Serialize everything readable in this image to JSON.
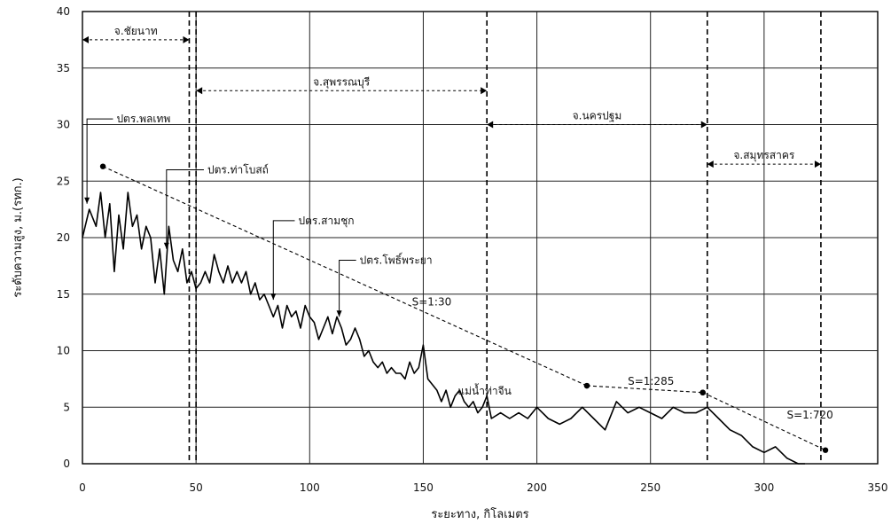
{
  "chart_data": {
    "type": "line",
    "title": "",
    "xlabel": "ระยะทาง, กิโลเมตร",
    "ylabel": "ระดับความสูง, ม.(รทก.)",
    "xlim": [
      0,
      350
    ],
    "ylim": [
      0,
      40
    ],
    "x_ticks": [
      0,
      50,
      100,
      150,
      200,
      250,
      300,
      350
    ],
    "y_ticks": [
      0,
      5,
      10,
      15,
      20,
      25,
      30,
      35,
      40
    ],
    "grid": true,
    "boundary_lines_km": [
      47,
      50,
      178,
      275,
      325
    ],
    "series": [
      {
        "name": "แม่น้ำท่าจีน",
        "x": [
          0,
          3,
          6,
          8,
          10,
          12,
          14,
          16,
          18,
          20,
          22,
          24,
          26,
          28,
          30,
          32,
          34,
          36,
          38,
          40,
          42,
          44,
          46,
          48,
          50,
          52,
          54,
          56,
          58,
          60,
          62,
          64,
          66,
          68,
          70,
          72,
          74,
          76,
          78,
          80,
          82,
          84,
          86,
          88,
          90,
          92,
          94,
          96,
          98,
          100,
          102,
          104,
          106,
          108,
          110,
          112,
          114,
          116,
          118,
          120,
          122,
          124,
          126,
          128,
          130,
          132,
          134,
          136,
          138,
          140,
          142,
          144,
          146,
          148,
          150,
          152,
          154,
          156,
          158,
          160,
          162,
          164,
          166,
          168,
          170,
          172,
          174,
          176,
          178,
          180,
          184,
          188,
          192,
          196,
          200,
          205,
          210,
          215,
          220,
          225,
          230,
          235,
          240,
          245,
          250,
          255,
          260,
          265,
          270,
          275,
          280,
          285,
          290,
          295,
          300,
          305,
          310,
          315,
          318
        ],
        "y": [
          20,
          22.5,
          21,
          24,
          20,
          23,
          17,
          22,
          19,
          24,
          21,
          22,
          19,
          21,
          20,
          16,
          19,
          15,
          21,
          18,
          17,
          19,
          16,
          17,
          15.5,
          16,
          17,
          16,
          18.5,
          17,
          16,
          17.5,
          16,
          17,
          16,
          17,
          15,
          16,
          14.5,
          15,
          14,
          13,
          14,
          12,
          14,
          13,
          13.5,
          12,
          14,
          13,
          12.5,
          11,
          12,
          13,
          11.5,
          13,
          12,
          10.5,
          11,
          12,
          11,
          9.5,
          10,
          9,
          8.5,
          9,
          8,
          8.5,
          8,
          8,
          7.5,
          9,
          8,
          8.5,
          10.5,
          7.5,
          7,
          6.5,
          5.5,
          6.5,
          5,
          6,
          6.5,
          5.5,
          5,
          5.5,
          4.5,
          5,
          6,
          4,
          4.5,
          4,
          4.5,
          4,
          5,
          4,
          3.5,
          4,
          5,
          4,
          3,
          5.5,
          4.5,
          5,
          4.5,
          4,
          5,
          4.5,
          4.5,
          5,
          4,
          3,
          2.5,
          1.5,
          1,
          1.5,
          0.5,
          0,
          0
        ]
      },
      {
        "name": "S=1:30",
        "x": [
          9,
          222
        ],
        "y": [
          26.3,
          6.9
        ]
      },
      {
        "name": "S=1:285",
        "x": [
          222,
          273
        ],
        "y": [
          6.9,
          6.3
        ]
      },
      {
        "name": "S=1:720",
        "x": [
          273,
          327
        ],
        "y": [
          6.3,
          1.2
        ]
      }
    ],
    "river_label": "แม่น้ำท่าจีน",
    "slope_labels": [
      {
        "text": "S=1:30",
        "x": 145,
        "y": 14
      },
      {
        "text": "S=1:285",
        "x": 240,
        "y": 7
      },
      {
        "text": "S=1:720",
        "x": 310,
        "y": 4
      }
    ],
    "provinces": [
      {
        "name": "จ.ชัยนาท",
        "x_start": 0,
        "x_end": 47,
        "y": 37.5
      },
      {
        "name": "จ.สุพรรณบุรี",
        "x_start": 50,
        "x_end": 178,
        "y": 33
      },
      {
        "name": "จ.นครปฐม",
        "x_start": 178,
        "x_end": 275,
        "y": 30
      },
      {
        "name": "จ.สมุทรสาคร",
        "x_start": 275,
        "x_end": 325,
        "y": 26.5
      }
    ],
    "stations": [
      {
        "name": "ปตร.พลเทพ",
        "x": 2,
        "y": 23,
        "label_x": 15,
        "label_y": 30.5
      },
      {
        "name": "ปตร.ท่าโบสถ์",
        "x": 37,
        "y": 19,
        "label_x": 55,
        "label_y": 26
      },
      {
        "name": "ปตร.สามชุก",
        "x": 84,
        "y": 14.5,
        "label_x": 95,
        "label_y": 21.5
      },
      {
        "name": "ปตร.โพธิ์พระยา",
        "x": 113,
        "y": 13,
        "label_x": 122,
        "label_y": 18
      }
    ]
  }
}
